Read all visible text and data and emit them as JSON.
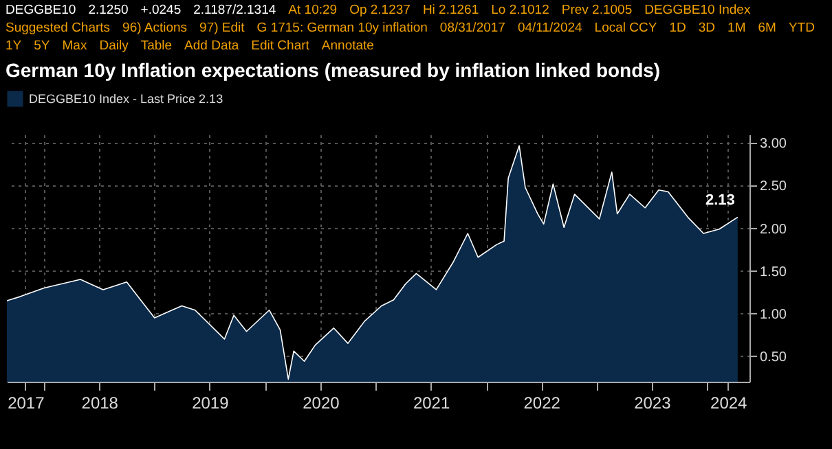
{
  "chart_data": {
    "type": "area",
    "title": "German 10y Inflation expectations (measured by inflation linked bonds)",
    "annotations": [
      "DEGGBE10",
      "2.1250",
      "+.0245",
      "2.1187/2.1314",
      "At 10:29",
      "Op 2.1237",
      "Hi 2.1261",
      "Lo 2.1012",
      "Prev 2.1005",
      "DEGGBE10 Index",
      "Suggested Charts",
      "96) Actions",
      "97) Edit",
      "G 1715: German 10y inflation",
      "08/31/2017",
      "04/11/2024",
      "Local CCY",
      "1D",
      "3D",
      "1M",
      "6M",
      "YTD",
      "1Y",
      "5Y",
      "Max",
      "Daily",
      "Table",
      "Add Data",
      "Edit Chart",
      "Annotate",
      {
        "text": "2.13",
        "x": "2024-04-11",
        "y": 2.13
      }
    ],
    "x": [
      "2017-08-31",
      "2017-10-15",
      "2018-01-01",
      "2018-05-01",
      "2018-07-15",
      "2018-10-01",
      "2018-11-20",
      "2019-01-01",
      "2019-04-01",
      "2019-05-15",
      "2019-08-20",
      "2019-09-20",
      "2019-11-01",
      "2020-01-15",
      "2020-02-20",
      "2020-03-18",
      "2020-04-05",
      "2020-05-10",
      "2020-06-15",
      "2020-08-15",
      "2020-10-01",
      "2020-11-25",
      "2021-01-20",
      "2021-03-01",
      "2021-04-10",
      "2021-05-15",
      "2021-07-20",
      "2021-09-15",
      "2021-11-01",
      "2021-12-05",
      "2022-02-05",
      "2022-03-01",
      "2022-03-15",
      "2022-04-20",
      "2022-05-10",
      "2022-06-20",
      "2022-07-10",
      "2022-08-10",
      "2022-09-15",
      "2022-10-20",
      "2023-01-10",
      "2023-02-20",
      "2023-03-10",
      "2023-04-20",
      "2023-06-10",
      "2023-07-25",
      "2023-08-25",
      "2023-11-01",
      "2023-12-20",
      "2024-02-10",
      "2024-04-11"
    ],
    "series": [
      {
        "name": "DEGGBE10 Index - Last Price 2.13",
        "color": "#0b2a4a",
        "values": [
          1.15,
          1.2,
          1.3,
          1.4,
          1.28,
          1.37,
          1.14,
          0.95,
          1.09,
          1.04,
          0.7,
          0.98,
          0.79,
          1.04,
          0.81,
          0.23,
          0.56,
          0.44,
          0.63,
          0.83,
          0.65,
          0.91,
          1.09,
          1.16,
          1.35,
          1.47,
          1.28,
          1.61,
          1.94,
          1.66,
          1.81,
          1.85,
          2.59,
          2.97,
          2.48,
          2.17,
          2.05,
          2.52,
          2.01,
          2.4,
          2.11,
          2.66,
          2.17,
          2.4,
          2.24,
          2.45,
          2.43,
          2.12,
          1.94,
          1.99,
          2.13
        ]
      }
    ],
    "xlim": [
      "2017-08-31",
      "2024-05-20"
    ],
    "xticks": [
      {
        "value": "2017-10-31",
        "label": "2017"
      },
      {
        "value": "2018-01-01",
        "label": null
      },
      {
        "value": "2018-07-02",
        "label": "2018"
      },
      {
        "value": "2019-01-01",
        "label": null
      },
      {
        "value": "2019-07-02",
        "label": "2019"
      },
      {
        "value": "2020-01-01",
        "label": null
      },
      {
        "value": "2020-07-02",
        "label": "2020"
      },
      {
        "value": "2021-01-01",
        "label": null
      },
      {
        "value": "2021-07-02",
        "label": "2021"
      },
      {
        "value": "2022-01-01",
        "label": null
      },
      {
        "value": "2022-07-02",
        "label": "2022"
      },
      {
        "value": "2023-01-01",
        "label": null
      },
      {
        "value": "2023-07-02",
        "label": "2023"
      },
      {
        "value": "2024-01-01",
        "label": null
      },
      {
        "value": "2024-03-10",
        "label": "2024"
      }
    ],
    "ylim": [
      0.2,
      3.1
    ],
    "yticks": [
      {
        "value": 0.5,
        "label": "0.50"
      },
      {
        "value": 1,
        "label": "1.00"
      },
      {
        "value": 1.5,
        "label": "1.50"
      },
      {
        "value": 2,
        "label": "2.00"
      },
      {
        "value": 2.5,
        "label": "2.50"
      },
      {
        "value": 3,
        "label": "3.00"
      }
    ],
    "grid": true,
    "legend": "top"
  }
}
